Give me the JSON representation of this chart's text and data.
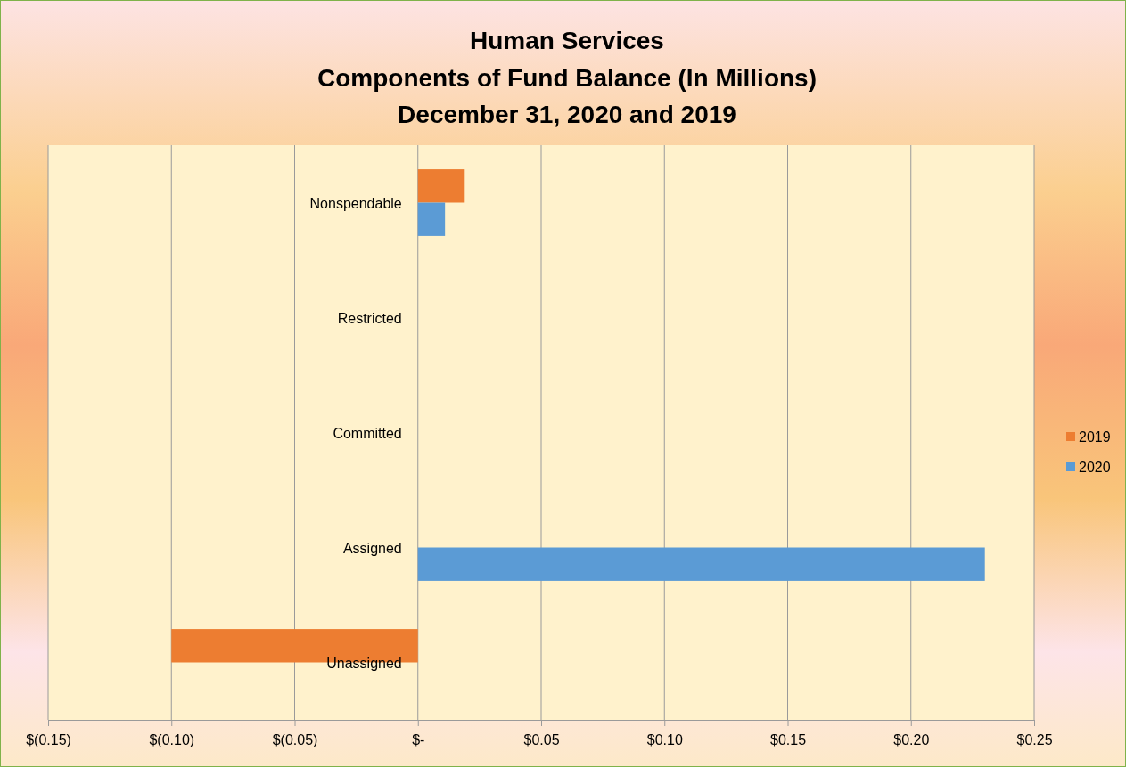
{
  "chart_data": {
    "type": "bar",
    "orientation": "horizontal",
    "title": "Human Services\nComponents of Fund Balance (In Millions)\nDecember 31, 2020 and 2019",
    "categories": [
      "Nonspendable",
      "Restricted",
      "Committed",
      "Assigned",
      "Unassigned"
    ],
    "series": [
      {
        "name": "2019",
        "color": "#ed7d31",
        "values": [
          0.019,
          null,
          null,
          null,
          -0.1
        ]
      },
      {
        "name": "2020",
        "color": "#5b9bd5",
        "values": [
          0.011,
          null,
          null,
          0.23,
          null
        ]
      }
    ],
    "xlim": [
      -0.15,
      0.25
    ],
    "xticks": [
      {
        "value": -0.15,
        "label": "$(0.15)"
      },
      {
        "value": -0.1,
        "label": "$(0.10)"
      },
      {
        "value": -0.05,
        "label": "$(0.05)"
      },
      {
        "value": 0,
        "label": "$-"
      },
      {
        "value": 0.05,
        "label": "$0.05"
      },
      {
        "value": 0.1,
        "label": "$0.10"
      },
      {
        "value": 0.15,
        "label": "$0.15"
      },
      {
        "value": 0.2,
        "label": "$0.20"
      },
      {
        "value": 0.25,
        "label": "$0.25"
      }
    ],
    "grid": "x",
    "legend": "right"
  }
}
